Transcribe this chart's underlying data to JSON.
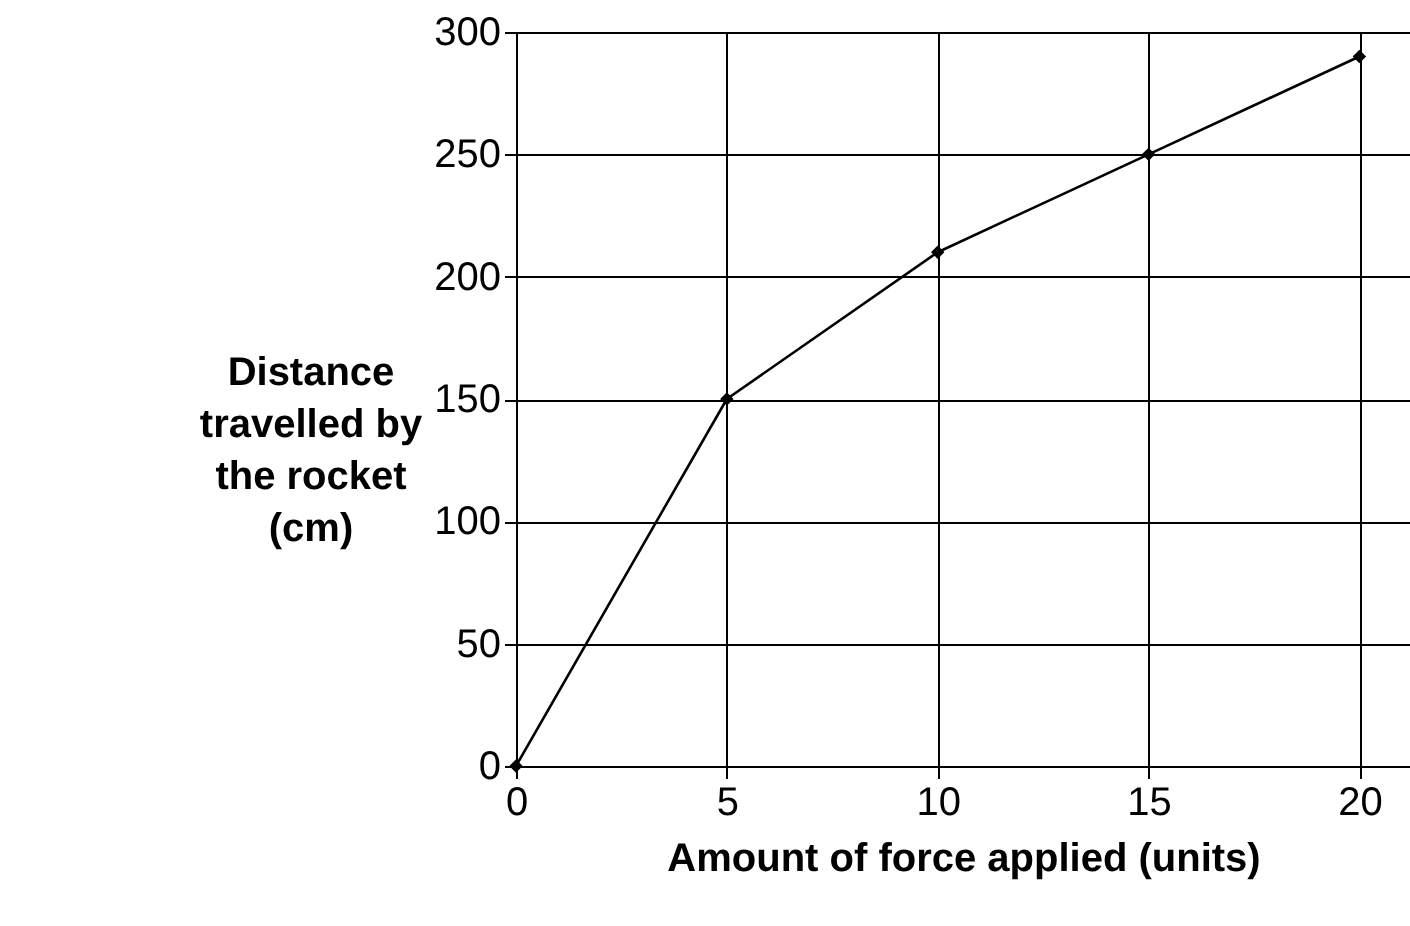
{
  "chart_data": {
    "type": "line",
    "xlabel": "Amount of force applied (units)",
    "ylabel": "Distance travelled by the rocket (cm)",
    "x": [
      0,
      5,
      10,
      15,
      20
    ],
    "series": [
      {
        "color": "#000000",
        "values": [
          0,
          150,
          210,
          250,
          290
        ]
      }
    ],
    "xlim": [
      0,
      21.2
    ],
    "xticks": [
      0,
      5,
      10,
      15,
      20
    ],
    "ylim": [
      0,
      300
    ],
    "yticks": [
      0,
      50,
      100,
      150,
      200,
      250,
      300
    ],
    "grid": true,
    "marker": "diamond",
    "line_style": "solid"
  }
}
